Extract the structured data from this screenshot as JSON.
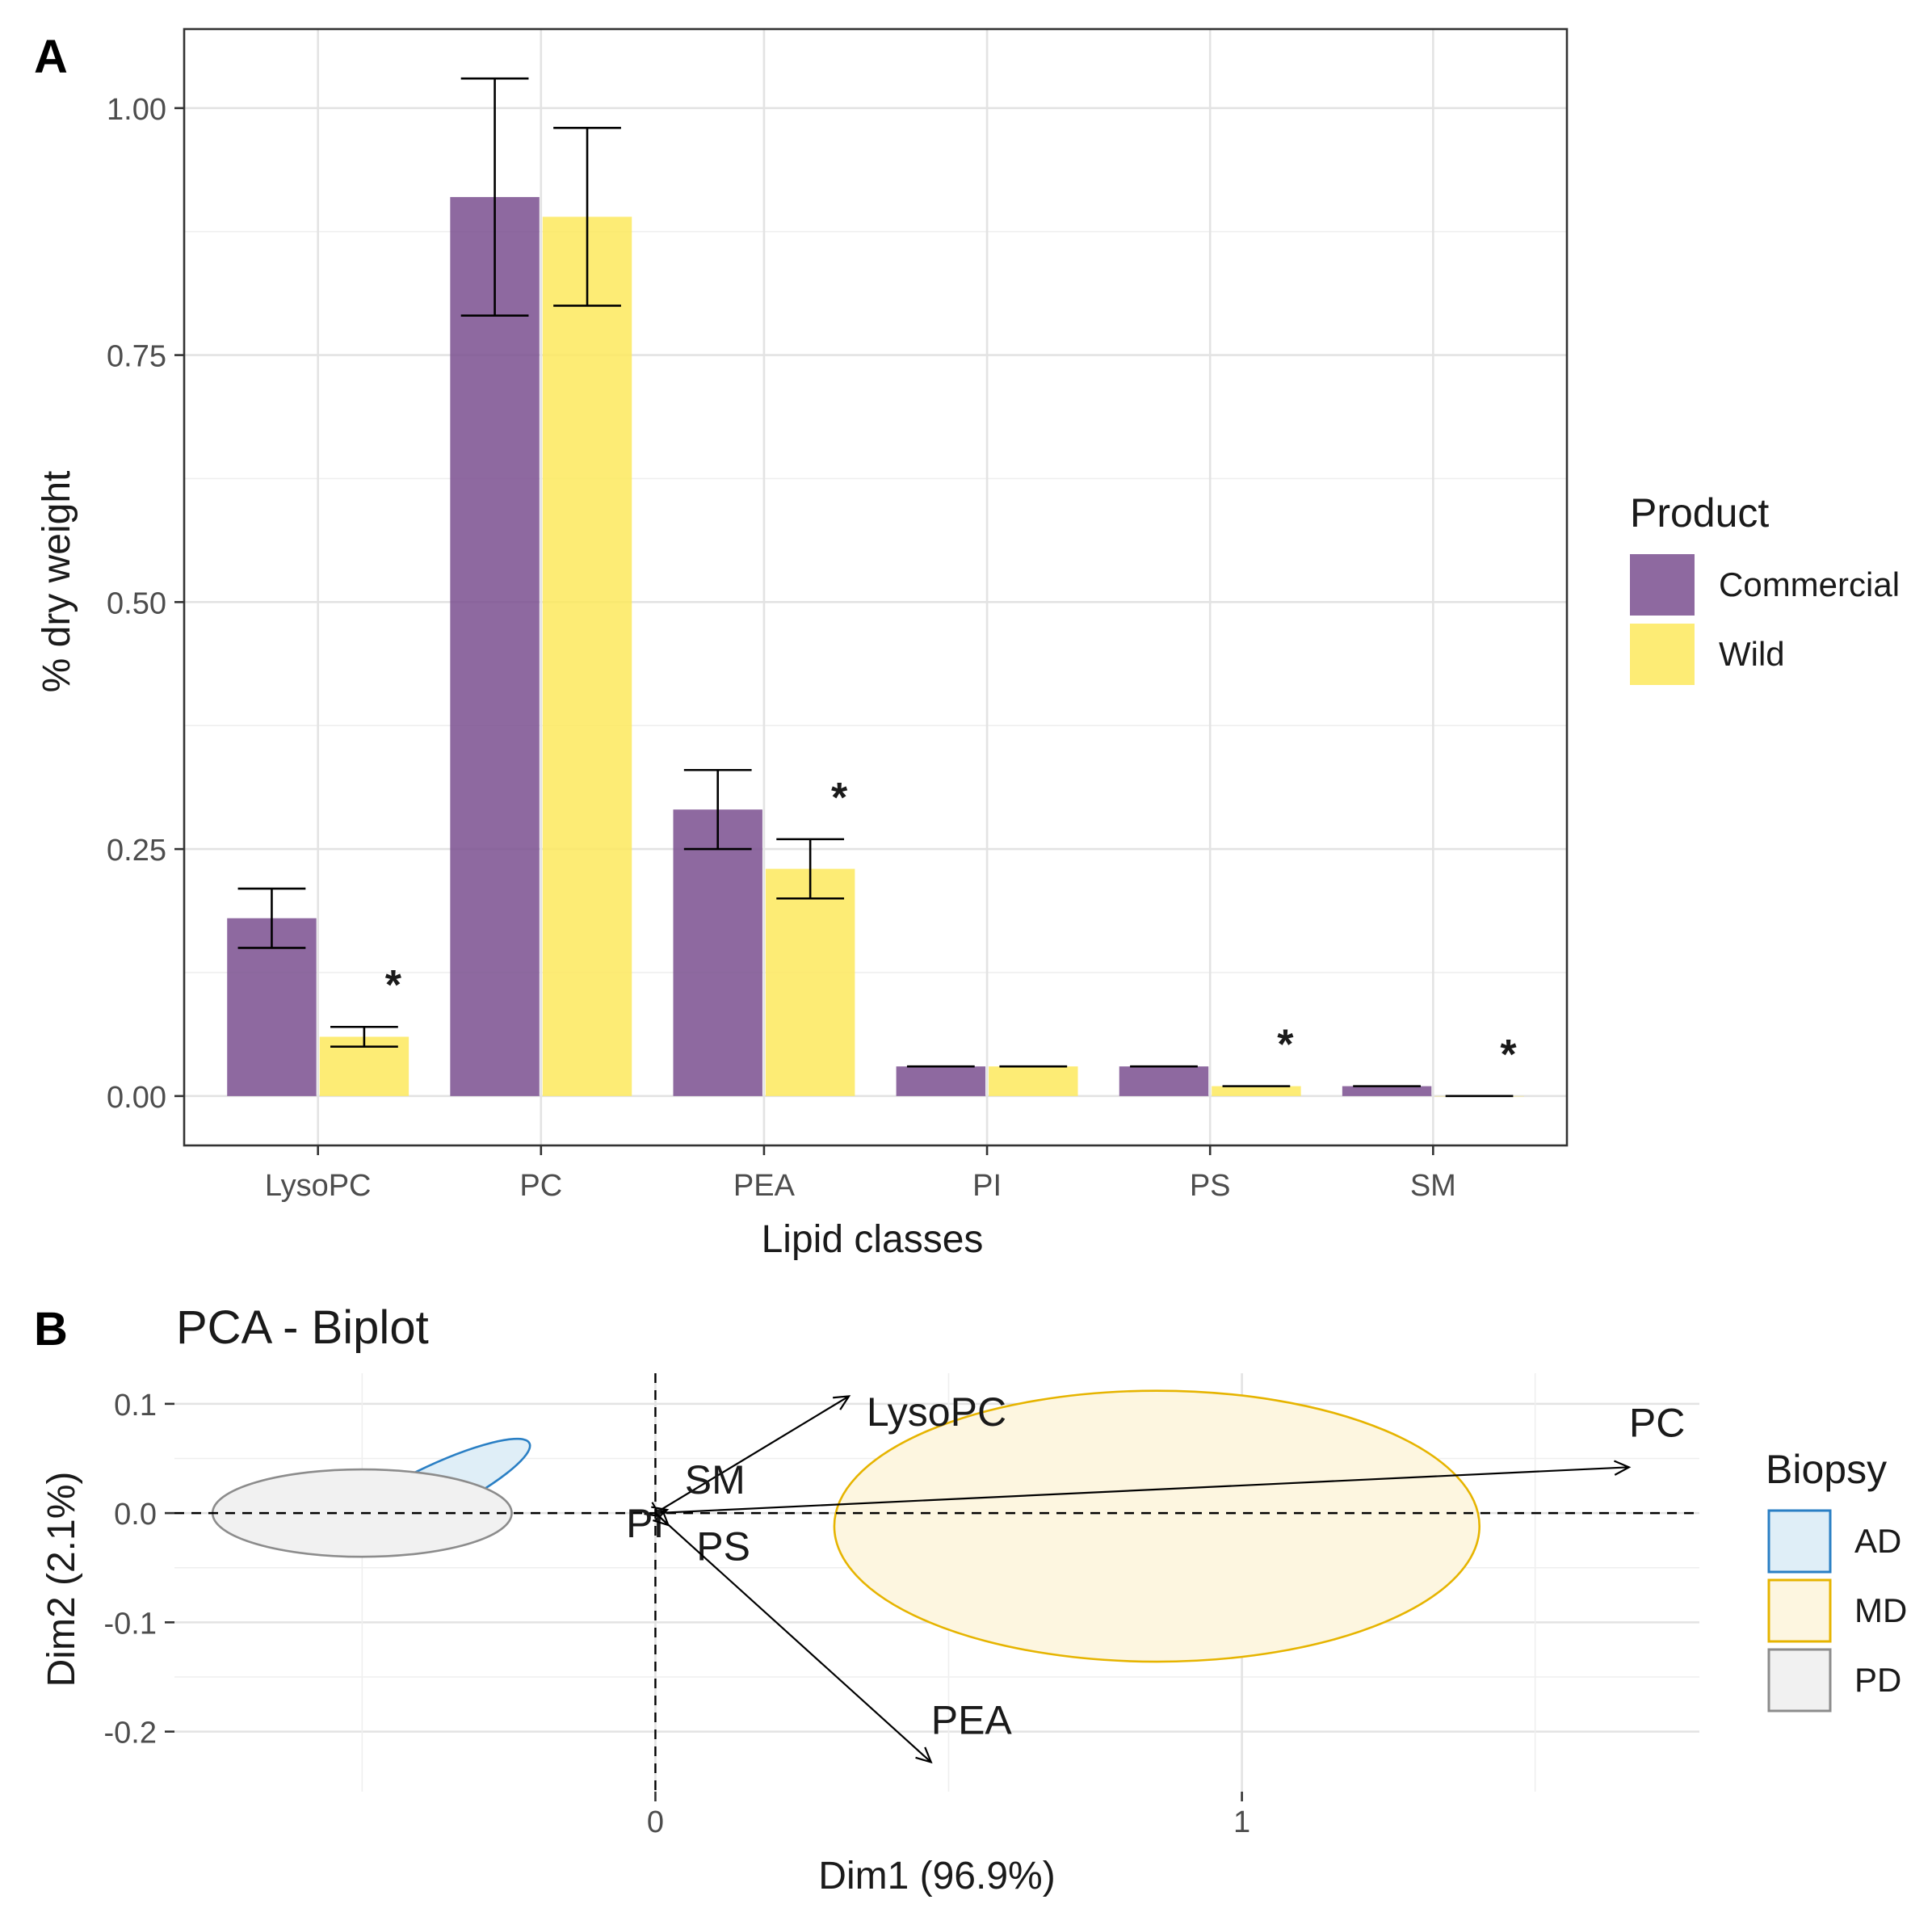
{
  "chart_data": [
    {
      "panel": "A",
      "type": "bar",
      "title": "",
      "xlabel": "Lipid classes",
      "ylabel": "% dry weight",
      "categories": [
        "LysoPC",
        "PC",
        "PEA",
        "PI",
        "PS",
        "SM"
      ],
      "series": [
        {
          "name": "Commercial",
          "color": "#7b5090",
          "values": [
            0.18,
            0.91,
            0.29,
            0.03,
            0.03,
            0.01
          ],
          "err_low": [
            0.15,
            0.79,
            0.25,
            0.03,
            0.03,
            0.01
          ],
          "err_high": [
            0.21,
            1.03,
            0.33,
            0.03,
            0.03,
            0.01
          ],
          "significant": [
            false,
            false,
            false,
            false,
            false,
            false
          ]
        },
        {
          "name": "Wild",
          "color": "#fde95e",
          "values": [
            0.06,
            0.89,
            0.23,
            0.03,
            0.01,
            0.0
          ],
          "err_low": [
            0.05,
            0.8,
            0.2,
            0.03,
            0.01,
            0.0
          ],
          "err_high": [
            0.07,
            0.98,
            0.26,
            0.03,
            0.01,
            0.0
          ],
          "significant": [
            true,
            false,
            true,
            false,
            true,
            true
          ]
        }
      ],
      "significance_marker": "*",
      "ylim": [
        -0.05,
        1.08
      ],
      "yticks": [
        "0.00",
        "0.25",
        "0.50",
        "0.75",
        "1.00"
      ],
      "grid": true,
      "legend": {
        "title": "Product",
        "position": "right",
        "entries": [
          "Commercial",
          "Wild"
        ]
      }
    },
    {
      "panel": "B",
      "type": "scatter",
      "title": "PCA - Biplot",
      "xlabel": "Dim1 (96.9%)",
      "ylabel": "Dim2 (2.1%)",
      "xlim": [
        -0.82,
        1.78
      ],
      "ylim": [
        -0.255,
        0.128
      ],
      "xticks": [
        "0",
        "1"
      ],
      "yticks": [
        "0.1",
        "0.0",
        "-0.1",
        "-0.2"
      ],
      "grid": true,
      "variables": [
        {
          "name": "LysoPC",
          "x": 0.33,
          "y": 0.107,
          "label_x": 0.36,
          "label_y": 0.08
        },
        {
          "name": "PC",
          "x": 1.66,
          "y": 0.042,
          "label_x": 1.66,
          "label_y": 0.07
        },
        {
          "name": "SM",
          "x": 0.02,
          "y": 0.003,
          "label_x": 0.05,
          "label_y": 0.018
        },
        {
          "name": "PI",
          "x": 0.008,
          "y": -0.003,
          "label_x": -0.05,
          "label_y": -0.022
        },
        {
          "name": "PS",
          "x": 0.022,
          "y": -0.011,
          "label_x": 0.07,
          "label_y": -0.043
        },
        {
          "name": "PEA",
          "x": 0.47,
          "y": -0.228,
          "label_x": 0.47,
          "label_y": -0.202
        }
      ],
      "groups": [
        {
          "name": "AD",
          "color": "#2a7fc4",
          "fill": "#dfeef7",
          "cx": -0.39,
          "cy": 0.018,
          "rx": 0.195,
          "ry": 0.022,
          "angle_deg": 26
        },
        {
          "name": "MD",
          "color": "#e6b400",
          "fill": "#fdf6e0",
          "cx": 0.855,
          "cy": -0.012,
          "rx": 0.55,
          "ry": 0.124,
          "angle_deg": 0
        },
        {
          "name": "PD",
          "color": "#8c8c8c",
          "fill": "#f1f1f1",
          "cx": -0.5,
          "cy": 0.0,
          "rx": 0.255,
          "ry": 0.04,
          "angle_deg": 0
        }
      ],
      "legend": {
        "title": "Biopsy",
        "position": "right",
        "entries": [
          "AD",
          "MD",
          "PD"
        ]
      }
    }
  ]
}
